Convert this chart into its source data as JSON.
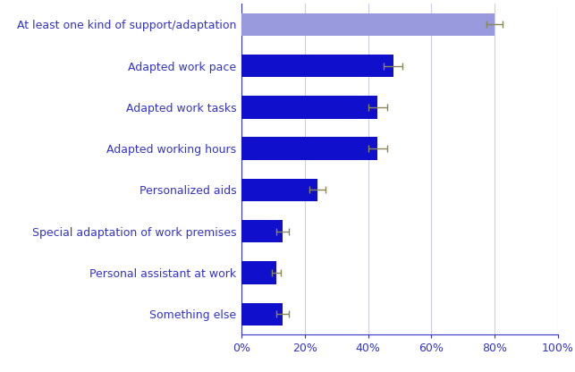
{
  "categories": [
    "Something else",
    "Personal assistant at work",
    "Special adaptation of work premises",
    "Personalized aids",
    "Adapted working hours",
    "Adapted work tasks",
    "Adapted work pace",
    "At least one kind of support/adaptation"
  ],
  "values": [
    13,
    11,
    13,
    24,
    43,
    43,
    48,
    80
  ],
  "errors": [
    2.0,
    1.5,
    2.0,
    2.5,
    3.0,
    3.0,
    3.0,
    2.5
  ],
  "bar_colors": [
    "#1010CC",
    "#1010CC",
    "#1010CC",
    "#1010CC",
    "#1010CC",
    "#1010CC",
    "#1010CC",
    "#9999DD"
  ],
  "error_color": "#888855",
  "axis_color": "#3333CC",
  "tick_label_color": "#3333CC",
  "grid_color": "#CCCCEE",
  "bg_color": "#FFFFFF",
  "xlim": [
    0,
    100
  ],
  "xtick_values": [
    0,
    20,
    40,
    60,
    80,
    100
  ],
  "xtick_labels": [
    "0%",
    "20%",
    "40%",
    "60%",
    "80%",
    "100%"
  ],
  "bar_height": 0.55,
  "label_fontsize": 9.0,
  "tick_fontsize": 9.0,
  "figure_width": 6.43,
  "figure_height": 4.16,
  "figure_dpi": 100
}
